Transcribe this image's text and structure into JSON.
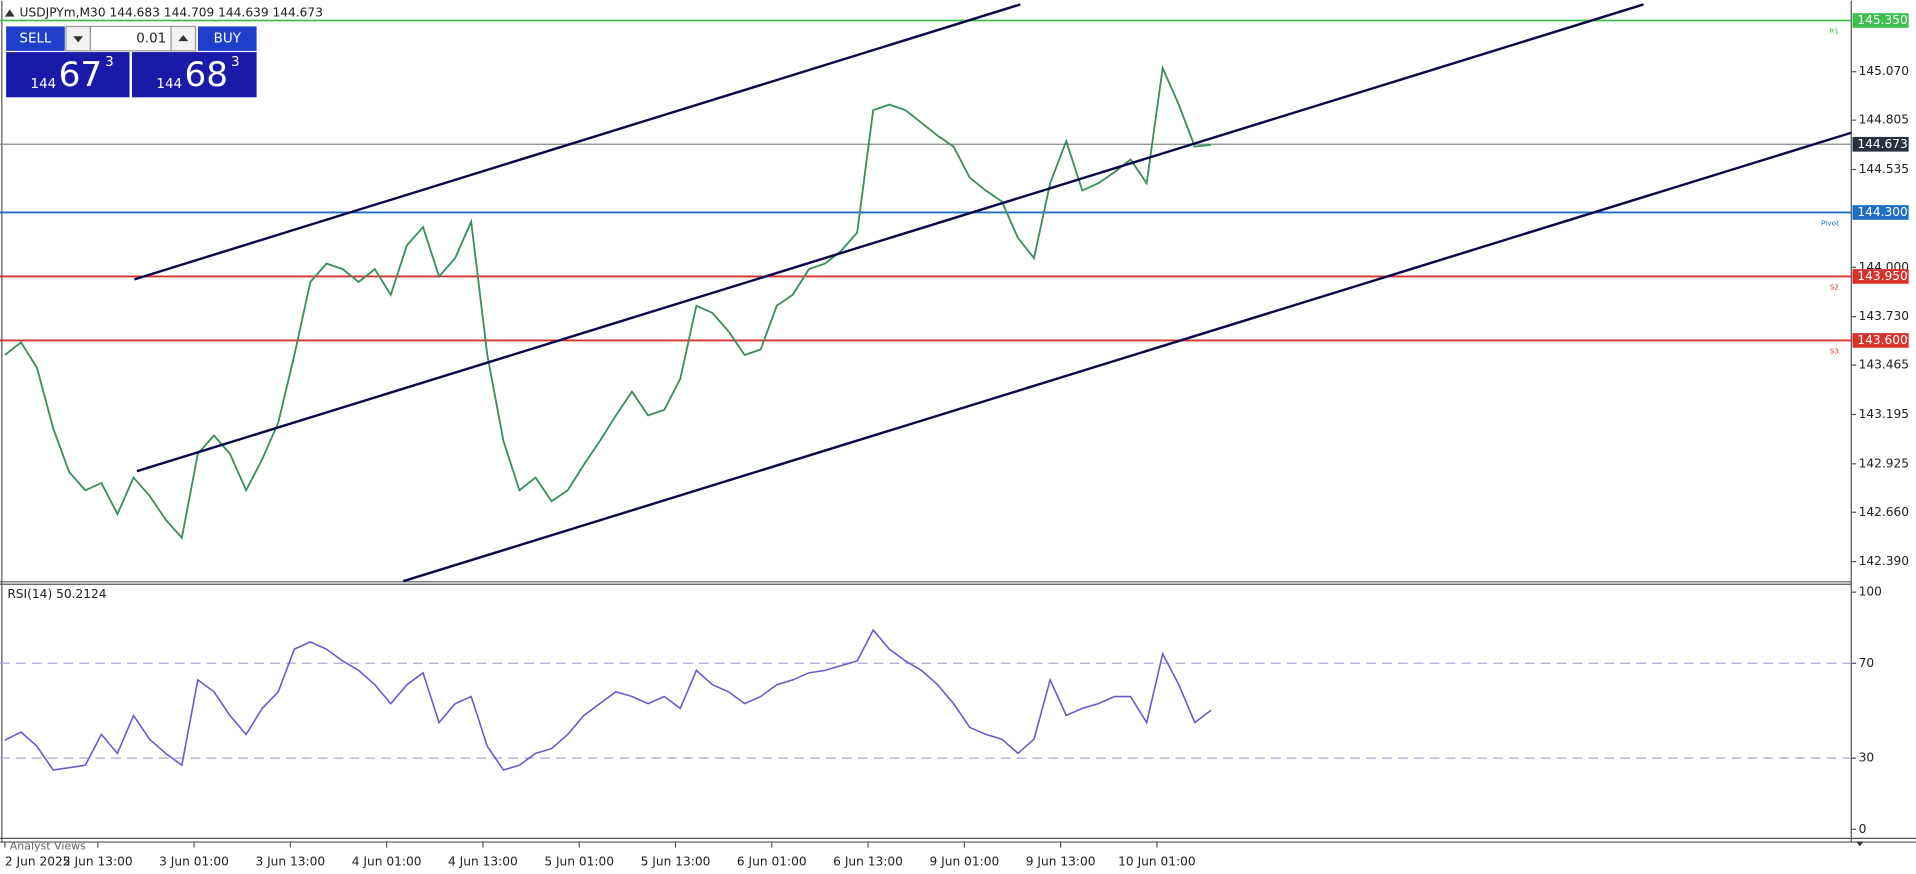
{
  "header": {
    "symbol_info": "USDJPYm,M30  144.683 144.709 144.639 144.673"
  },
  "trade_panel": {
    "sell": "SELL",
    "lot": "0.01",
    "buy": "BUY",
    "bid": {
      "big": "144",
      "main": "67",
      "small": "3"
    },
    "ask": {
      "big": "144",
      "main": "68",
      "small": "3"
    }
  },
  "price_chart": {
    "ylim": [
      142.283,
      145.458
    ],
    "yticks": [
      {
        "value": 145.07,
        "label": "145.070"
      },
      {
        "value": 144.805,
        "label": "144.805"
      },
      {
        "value": 144.535,
        "label": "144.535"
      },
      {
        "value": 144.0,
        "label": "144.000"
      },
      {
        "value": 143.73,
        "label": "143.730"
      },
      {
        "value": 143.465,
        "label": "143.465"
      },
      {
        "value": 143.195,
        "label": "143.195"
      },
      {
        "value": 142.925,
        "label": "142.925"
      },
      {
        "value": 142.66,
        "label": "142.660"
      },
      {
        "value": 142.39,
        "label": "142.390"
      }
    ],
    "levels": [
      {
        "name": "R1",
        "value": 145.35,
        "label": "145.350",
        "color": "#3fbf4f"
      },
      {
        "name": "Pivot",
        "value": 144.3,
        "label": "144.300",
        "color": "#1e6fc4"
      },
      {
        "name": "S2",
        "value": 143.95,
        "label": "143.950",
        "color": "#d8322c"
      },
      {
        "name": "S3",
        "value": 143.6,
        "label": "143.600",
        "color": "#d8322c"
      }
    ],
    "current": {
      "value": 144.673,
      "label": "144.673"
    },
    "line_color": "#3a8f5a",
    "closes": [
      143.52,
      143.59,
      143.45,
      143.12,
      142.88,
      142.78,
      142.82,
      142.65,
      142.85,
      142.75,
      142.62,
      142.52,
      142.98,
      143.08,
      142.98,
      142.78,
      142.95,
      143.15,
      143.52,
      143.92,
      144.02,
      143.99,
      143.92,
      143.99,
      143.85,
      144.12,
      144.22,
      143.95,
      144.05,
      144.25,
      143.52,
      143.05,
      142.78,
      142.85,
      142.72,
      142.78,
      142.92,
      143.05,
      143.19,
      143.32,
      143.19,
      143.22,
      143.39,
      143.79,
      143.75,
      143.65,
      143.52,
      143.55,
      143.79,
      143.85,
      143.99,
      144.02,
      144.09,
      144.19,
      144.86,
      144.89,
      144.86,
      144.79,
      144.72,
      144.66,
      144.49,
      144.42,
      144.36,
      144.16,
      144.05,
      144.46,
      144.69,
      144.42,
      144.46,
      144.52,
      144.59,
      144.46,
      145.09,
      144.89,
      144.66,
      144.67
    ]
  },
  "rsi": {
    "title": "RSI(14) 50.2124",
    "ylim": [
      -3.6,
      103.6
    ],
    "yticks": [
      0,
      30,
      70,
      100
    ],
    "dashed_levels": [
      30,
      70
    ],
    "color": "#6a5acd",
    "values": [
      37.6,
      41,
      35,
      25,
      26,
      27,
      40,
      32,
      48,
      38,
      32,
      27,
      63,
      58,
      48,
      40,
      51,
      58,
      76,
      79,
      76,
      71,
      67,
      61,
      53,
      61,
      66,
      45,
      53,
      56,
      35,
      25,
      27,
      32,
      34,
      40,
      48,
      53,
      58,
      56,
      53,
      56,
      51,
      67,
      61,
      58,
      53,
      56,
      61,
      63,
      66,
      67,
      69,
      71,
      84,
      76,
      71,
      67,
      61,
      53,
      43,
      40,
      38,
      32,
      38,
      63,
      48,
      51,
      53,
      56,
      56,
      45,
      74,
      61,
      45,
      50.21
    ]
  },
  "time_labels": [
    "2 Jun 2025",
    "2 Jun 13:00",
    "3 Jun 01:00",
    "3 Jun 13:00",
    "4 Jun 01:00",
    "4 Jun 13:00",
    "5 Jun 01:00",
    "5 Jun 13:00",
    "6 Jun 01:00",
    "6 Jun 13:00",
    "9 Jun 01:00",
    "9 Jun 13:00",
    "10 Jun 01:00"
  ],
  "tabs": [
    "Analyst Views"
  ]
}
